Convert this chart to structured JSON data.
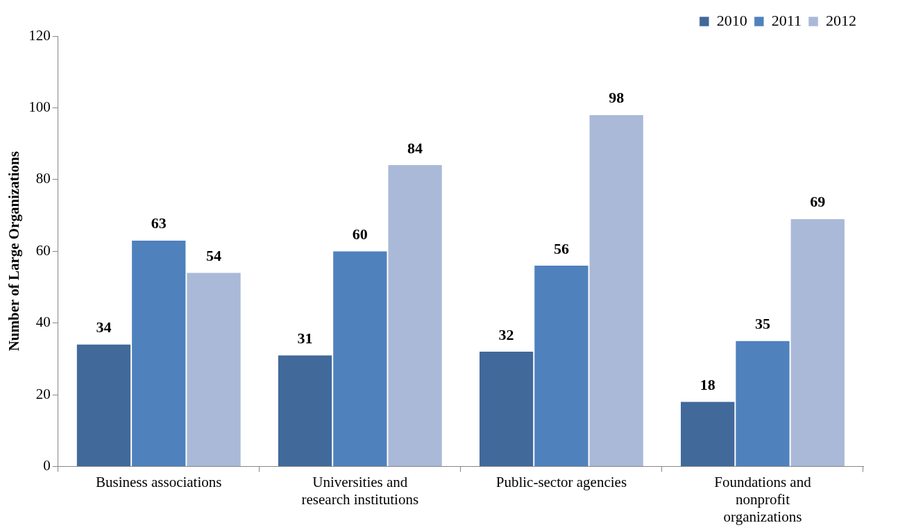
{
  "chart_data": {
    "type": "bar",
    "categories": [
      "Business associations",
      "Universities and research institutions",
      "Public-sector agencies",
      "Foundations and nonprofit organizations"
    ],
    "series": [
      {
        "name": "2010",
        "color": "#41699a",
        "values": [
          34,
          31,
          32,
          18
        ]
      },
      {
        "name": "2011",
        "color": "#4f81bd",
        "values": [
          63,
          60,
          56,
          35
        ]
      },
      {
        "name": "2012",
        "color": "#aab9d7",
        "values": [
          54,
          84,
          98,
          69
        ]
      }
    ],
    "ylabel": "Number of Large Organizations",
    "ylim": [
      0,
      120
    ],
    "yticks": [
      0,
      20,
      40,
      60,
      80,
      100,
      120
    ],
    "grid": false,
    "legend": "top right",
    "data_labels": true
  }
}
